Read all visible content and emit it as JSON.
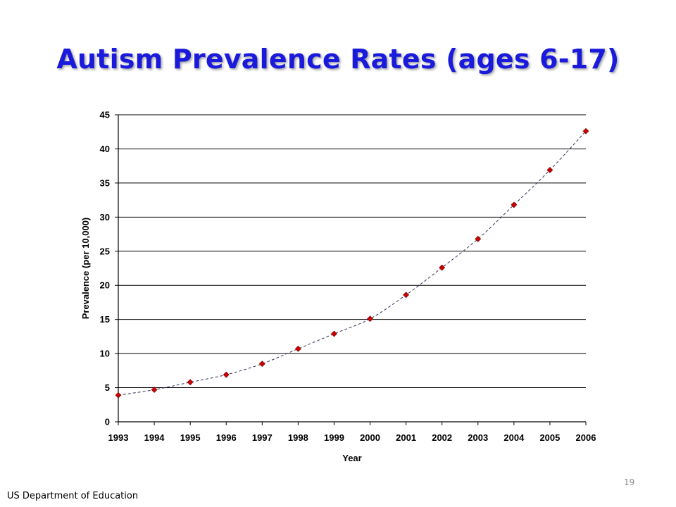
{
  "slide": {
    "title": "Autism Prevalence Rates (ages 6-17)",
    "source": "US Department of Education",
    "page_number": "19"
  },
  "chart_data": {
    "type": "line",
    "title": "",
    "xlabel": "Year",
    "ylabel": "Prevalence (per 10,000)",
    "x": [
      "1993",
      "1994",
      "1995",
      "1996",
      "1997",
      "1998",
      "1999",
      "2000",
      "2001",
      "2002",
      "2003",
      "2004",
      "2005",
      "2006"
    ],
    "series": [
      {
        "values": [
          3.9,
          4.7,
          5.8,
          6.9,
          8.5,
          10.7,
          12.9,
          15.1,
          18.6,
          22.6,
          26.8,
          31.8,
          36.9,
          42.6
        ]
      }
    ],
    "ylim": [
      0,
      45
    ],
    "yticks": [
      0,
      5,
      10,
      15,
      20,
      25,
      30,
      35,
      40,
      45
    ],
    "grid": true,
    "colors": {
      "marker": "#cc0000",
      "line": "#33335a",
      "gridline": "#000000"
    }
  }
}
